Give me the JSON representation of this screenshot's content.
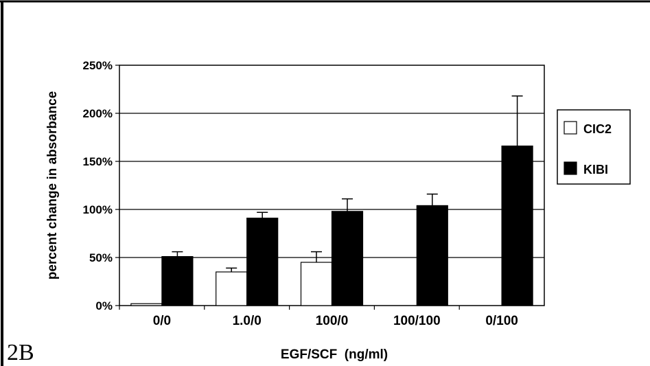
{
  "figure_label": "2B",
  "chart_data": {
    "type": "bar",
    "xlabel": "EGF/SCF  (ng/ml)",
    "ylabel": "percent change in absorbance",
    "categories": [
      "0/0",
      "1.0/0",
      "100/0",
      "100/100",
      "0/100"
    ],
    "ylim": [
      0,
      250
    ],
    "yticks": [
      0,
      50,
      100,
      150,
      200,
      250
    ],
    "ytick_labels": [
      "0%",
      "50%",
      "100%",
      "150%",
      "200%",
      "250%"
    ],
    "grid": "horizontal",
    "legend_position": "right",
    "series": [
      {
        "name": "CIC2",
        "color": "#ffffff",
        "values": [
          2,
          35,
          45,
          null,
          null
        ],
        "errors": [
          0,
          4,
          11,
          null,
          null
        ]
      },
      {
        "name": "KIBI",
        "color": "#000000",
        "values": [
          51,
          91,
          98,
          104,
          166
        ],
        "errors": [
          5,
          6,
          13,
          12,
          52
        ]
      }
    ]
  }
}
